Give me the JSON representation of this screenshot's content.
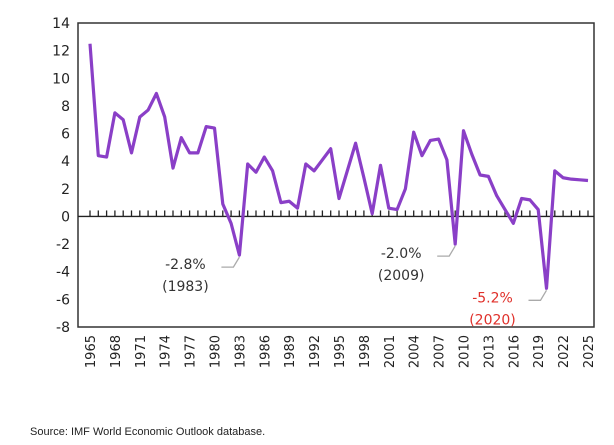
{
  "chart_data": {
    "type": "line",
    "title": "",
    "xlabel": "",
    "ylabel": "",
    "ylim": [
      -8,
      14
    ],
    "yticks": [
      14,
      12,
      10,
      8,
      6,
      4,
      2,
      0,
      -2,
      -4,
      -6,
      -8
    ],
    "xtick_labels": [
      "1965",
      "1968",
      "1971",
      "1974",
      "1977",
      "1980",
      "1983",
      "1986",
      "1989",
      "1992",
      "1995",
      "1998",
      "2001",
      "2004",
      "2007",
      "2010",
      "2013",
      "2016",
      "2019",
      "2022",
      "2025"
    ],
    "grid": false,
    "line_color": "#8a3fc7",
    "x": [
      1965,
      1966,
      1967,
      1968,
      1969,
      1970,
      1971,
      1972,
      1973,
      1974,
      1975,
      1976,
      1977,
      1978,
      1979,
      1980,
      1981,
      1982,
      1983,
      1984,
      1985,
      1986,
      1987,
      1988,
      1989,
      1990,
      1991,
      1992,
      1993,
      1994,
      1995,
      1996,
      1997,
      1998,
      1999,
      2000,
      2001,
      2002,
      2003,
      2004,
      2005,
      2006,
      2007,
      2008,
      2009,
      2010,
      2011,
      2012,
      2013,
      2014,
      2015,
      2016,
      2017,
      2018,
      2019,
      2020,
      2021,
      2022,
      2023,
      2024,
      2025
    ],
    "values": [
      12.5,
      4.4,
      4.3,
      7.5,
      7.0,
      4.6,
      7.2,
      7.7,
      8.9,
      7.2,
      3.5,
      5.7,
      4.6,
      4.6,
      6.5,
      6.4,
      0.9,
      -0.5,
      -2.8,
      3.8,
      3.2,
      4.3,
      3.3,
      1.0,
      1.1,
      0.6,
      3.8,
      3.3,
      4.1,
      4.9,
      1.3,
      3.3,
      5.3,
      2.8,
      0.2,
      3.7,
      0.6,
      0.5,
      2.0,
      6.1,
      4.4,
      5.5,
      5.6,
      4.1,
      -2.0,
      6.2,
      4.5,
      3.0,
      2.9,
      1.5,
      0.5,
      -0.5,
      1.3,
      1.2,
      0.5,
      -5.2,
      3.3,
      2.8,
      2.7,
      2.65,
      2.6
    ],
    "annotations": [
      {
        "year": 1983,
        "value": -2.8,
        "label": "-2.8%",
        "sublabel": "(1983)",
        "color": "#333333"
      },
      {
        "year": 2009,
        "value": -2.0,
        "label": "-2.0%",
        "sublabel": "(2009)",
        "color": "#333333"
      },
      {
        "year": 2020,
        "value": -5.2,
        "label": "-5.2%",
        "sublabel": "(2020)",
        "color": "#e0302a"
      }
    ]
  },
  "source": "Source: IMF World Economic Outlook database."
}
